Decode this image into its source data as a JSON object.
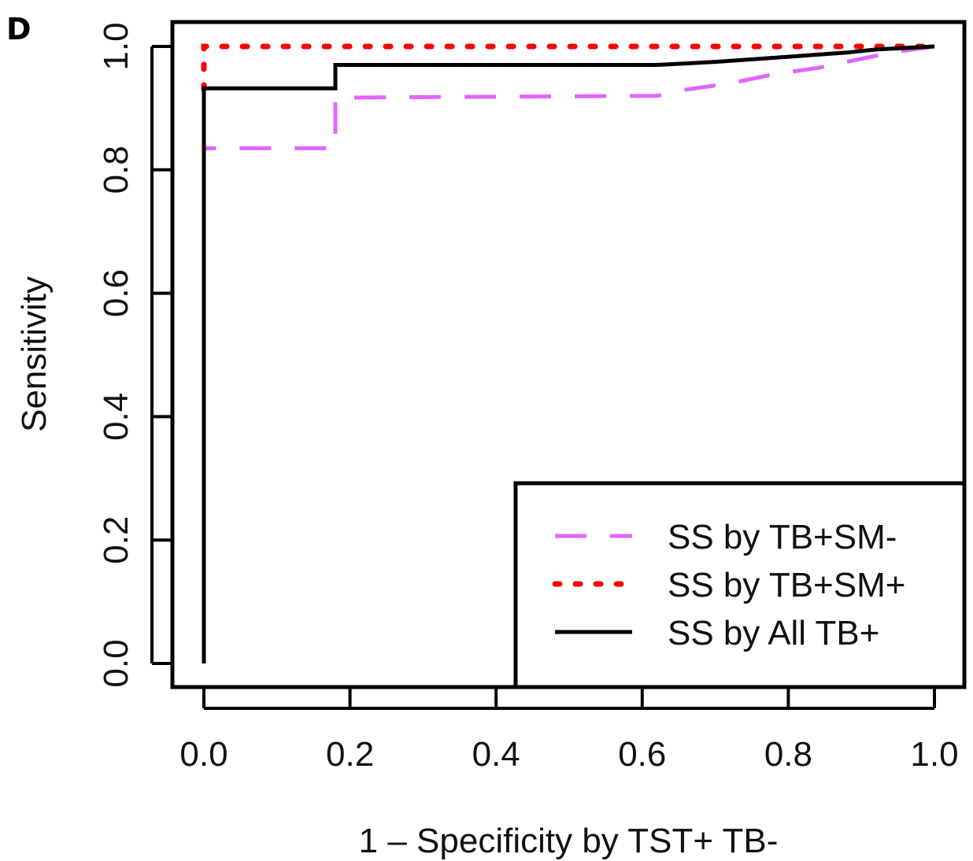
{
  "panel_label": "D",
  "chart_data": {
    "type": "line",
    "title": "",
    "xlabel": "1 – Specificity by TST+ TB-",
    "ylabel": "Sensitivity",
    "xlim": [
      -0.04,
      1.08
    ],
    "ylim": [
      -0.04,
      1.04
    ],
    "xticks": [
      0.0,
      0.2,
      0.4,
      0.6,
      0.8,
      1.0
    ],
    "xtick_labels": [
      "0.0",
      "0.2",
      "0.4",
      "0.6",
      "0.8",
      "1.0"
    ],
    "yticks": [
      0.0,
      0.2,
      0.4,
      0.6,
      0.8,
      1.0
    ],
    "ytick_labels": [
      "0.0",
      "0.2",
      "0.4",
      "0.6",
      "0.8",
      "1.0"
    ],
    "grid": false,
    "legend_position": "bottom-right",
    "series": [
      {
        "name": "SS by TB+SM-",
        "color": "#e066ff",
        "style": "dashed",
        "x": [
          0.0,
          0.0,
          0.18,
          0.18,
          0.62,
          0.66,
          0.72,
          0.78,
          0.84,
          0.88,
          0.92,
          0.94,
          1.0
        ],
        "y": [
          0.0,
          0.835,
          0.835,
          0.917,
          0.92,
          0.93,
          0.94,
          0.955,
          0.965,
          0.975,
          0.985,
          0.99,
          1.0
        ]
      },
      {
        "name": "SS by TB+SM+",
        "color": "#ff0000",
        "style": "dotted",
        "x": [
          0.0,
          0.0,
          1.0
        ],
        "y": [
          0.93,
          1.0,
          1.0
        ]
      },
      {
        "name": "SS by All TB+",
        "color": "#000000",
        "style": "solid",
        "x": [
          0.0,
          0.0,
          0.18,
          0.18,
          0.62,
          0.7,
          0.76,
          0.82,
          0.88,
          0.92,
          1.0
        ],
        "y": [
          0.0,
          0.932,
          0.932,
          0.97,
          0.97,
          0.975,
          0.98,
          0.985,
          0.99,
          0.995,
          1.0
        ]
      }
    ]
  }
}
